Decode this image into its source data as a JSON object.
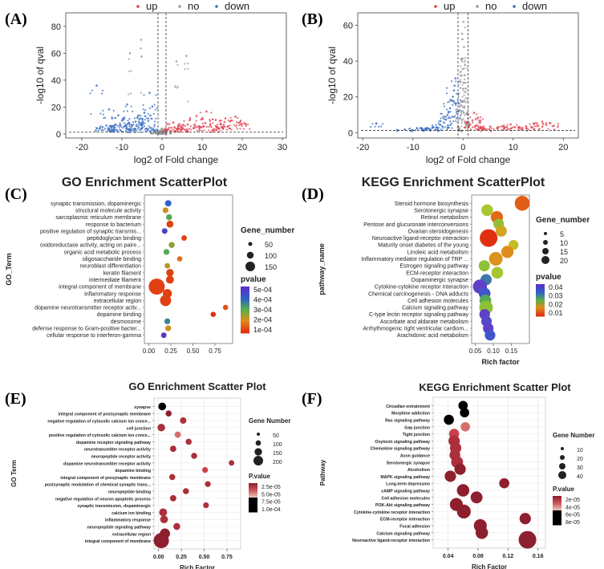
{
  "panel_labels": [
    "(A)",
    "(B)",
    "(C)",
    "(D)",
    "(E)",
    "(F)"
  ],
  "volcano_legend": [
    "up",
    "no",
    "down"
  ],
  "colors": {
    "up": "#e0404f",
    "no": "#9a9a9a",
    "down": "#3b6fc1"
  },
  "chart_data": [
    {
      "type": "scatter",
      "panel": "(A)",
      "title": "",
      "xlabel": "log2 of Fold change",
      "ylabel": "-log10 of qval",
      "xlim": [
        -24,
        31
      ],
      "ylim": [
        -3,
        90
      ],
      "xticks": [
        -20,
        -10,
        0,
        10,
        20,
        30
      ],
      "yticks": [
        0,
        20,
        40,
        60,
        80
      ],
      "threshold_x": [
        -1,
        1
      ],
      "threshold_y": 1.3,
      "legend": [
        "up",
        "no",
        "down"
      ],
      "series": [
        {
          "name": "down",
          "x": [
            -15.5,
            -14.8,
            -13.9,
            -12.7,
            -11.6,
            -10.4,
            -9.1,
            -8.2,
            -7.5,
            -6.6,
            -5.7,
            -4.9,
            -4.2,
            -3.4,
            -2.7,
            -2.1,
            -13.2,
            -10.9,
            -8.7,
            -6.1,
            -4.4,
            -3.1,
            -12.1,
            -7.9,
            -5.1,
            -16.3,
            -9.6,
            -2.4,
            -6.9,
            -11.2
          ],
          "y": [
            4.2,
            5.1,
            6.3,
            5.4,
            7.1,
            6.8,
            5.9,
            8.4,
            6.1,
            9.2,
            7.5,
            11.3,
            13.2,
            9.8,
            4.4,
            3.1,
            18.3,
            13.9,
            22.0,
            12.4,
            15.8,
            30.6,
            3.4,
            2.9,
            4.1,
            36.0,
            10.6,
            20.4,
            3.6,
            2.6
          ]
        },
        {
          "name": "no",
          "x": [
            -0.9,
            -0.6,
            -0.3,
            0.0,
            0.2,
            0.5,
            0.8,
            -0.4,
            0.3,
            -0.7,
            0.6,
            -0.1,
            0.1,
            -1.2,
            -8.0,
            -5.2,
            3.6,
            6.1,
            -1.4,
            0.9,
            -0.5,
            0.4,
            -2.5,
            2.1
          ],
          "y": [
            0.3,
            1.1,
            0.6,
            0.2,
            1.4,
            0.8,
            0.4,
            2.6,
            3.1,
            0.1,
            1.9,
            4.0,
            0.9,
            0.5,
            60.0,
            70.0,
            54.0,
            58.0,
            1.5,
            0.2,
            0.7,
            1.2,
            0.4,
            0.6
          ]
        },
        {
          "name": "up",
          "x": [
            1.5,
            2.3,
            3.1,
            4.0,
            5.2,
            6.4,
            7.9,
            9.3,
            10.8,
            12.0,
            13.4,
            14.6,
            15.8,
            17.0,
            18.3,
            19.5,
            11.1,
            8.6,
            13.9,
            16.4,
            2.8,
            6.9,
            20.8,
            12.7,
            4.7
          ],
          "y": [
            3.4,
            4.6,
            5.1,
            6.2,
            3.9,
            7.1,
            4.3,
            5.8,
            8.2,
            6.6,
            10.4,
            7.3,
            11.6,
            9.4,
            12.9,
            9.1,
            16.7,
            13.4,
            4.8,
            5.7,
            8.5,
            10.2,
            7.6,
            3.2,
            2.6
          ]
        }
      ]
    },
    {
      "type": "scatter",
      "panel": "(B)",
      "title": "",
      "xlabel": "log2 of Fold change",
      "ylabel": "-log10 of qval",
      "xlim": [
        -21,
        23
      ],
      "ylim": [
        -3,
        67
      ],
      "xticks": [
        -20,
        -10,
        0,
        10,
        20
      ],
      "yticks": [
        0,
        20,
        40,
        60
      ],
      "threshold_x": [
        -1,
        1
      ],
      "threshold_y": 1.3,
      "legend": [
        "up",
        "no",
        "down"
      ],
      "series": [
        {
          "name": "down",
          "x": [
            -17.3,
            -11.6,
            -9.2,
            -7.4,
            -5.9,
            -4.6,
            -3.8,
            -3.1,
            -2.6,
            -2.2,
            -1.8,
            -1.5,
            -3.4,
            -2.9,
            -4.1,
            -2.0,
            -1.7,
            -6.6,
            -8.3,
            -1.4
          ],
          "y": [
            5.2,
            1.8,
            2.6,
            2.2,
            3.1,
            4.4,
            5.6,
            9.8,
            13.7,
            17.9,
            23.6,
            30.4,
            7.3,
            11.2,
            3.5,
            20.1,
            26.3,
            1.9,
            2.7,
            16.4
          ]
        },
        {
          "name": "no",
          "x": [
            -0.9,
            -0.6,
            -0.3,
            0.0,
            0.3,
            0.6,
            0.9,
            -0.4,
            0.4,
            -0.7,
            0.7,
            -0.2,
            0.2,
            -0.5,
            0.5,
            -0.8,
            0.1,
            -0.1,
            0.8,
            -0.3
          ],
          "y": [
            3.2,
            8.1,
            15.4,
            24.6,
            32.1,
            19.3,
            6.4,
            41.2,
            37.8,
            12.6,
            10.5,
            55.3,
            47.9,
            28.4,
            22.7,
            2.1,
            62.0,
            35.6,
            4.8,
            1.2
          ]
        },
        {
          "name": "up",
          "x": [
            1.4,
            1.9,
            2.6,
            3.4,
            4.3,
            5.4,
            6.8,
            8.1,
            9.5,
            11.2,
            12.6,
            14.1,
            15.8,
            17.4,
            2.2,
            3.0,
            10.3,
            16.6
          ],
          "y": [
            4.6,
            6.9,
            3.8,
            2.9,
            2.2,
            3.4,
            2.7,
            3.9,
            4.6,
            2.8,
            3.6,
            5.1,
            6.2,
            5.3,
            11.1,
            8.4,
            3.1,
            4.4
          ]
        }
      ]
    },
    {
      "type": "scatter",
      "panel": "(C)",
      "title": "GO Enrichment ScatterPlot",
      "xlabel": "",
      "ylabel": "GO_Term",
      "xlim": [
        -0.05,
        0.95
      ],
      "xticks": [
        0.0,
        0.25,
        0.5,
        0.75
      ],
      "tick_labels": [
        "0.00",
        "0.25",
        "0.50",
        "0.75"
      ],
      "size_legend_title": "Gene_number",
      "size_legend": [
        50,
        100,
        150
      ],
      "color_legend_title": "pvalue",
      "color_legend": [
        "5e-04",
        "4e-04",
        "3e-04",
        "2e-04",
        "1e-04"
      ],
      "categories": [
        "synaptic transmission, dopaminergic",
        "structural molecule activity",
        "sarcoplasmic reticulum membrane",
        "response to bacterium",
        "positive regulation of synaptic transmis...",
        "peptidoglycan binding",
        "oxidoreductase activity, acting on paire...",
        "organic acid metabolic process",
        "oligosaccharide binding",
        "neuroblast differentiation",
        "keratin filament",
        "intermediate filament",
        "integral component of membrane",
        "inflammatory response",
        "extracellular region",
        "dopamine neurotransmitter receptor activ...",
        "dopamine binding",
        "desmosome",
        "defense response to Gram-positive bacter...",
        "cellular response to interferon-gamma"
      ],
      "x": [
        0.22,
        0.19,
        0.23,
        0.24,
        0.18,
        0.4,
        0.26,
        0.2,
        0.35,
        0.21,
        0.24,
        0.24,
        0.09,
        0.21,
        0.19,
        0.87,
        0.73,
        0.21,
        0.22,
        0.17
      ],
      "size": [
        12,
        9,
        10,
        16,
        8,
        7,
        10,
        9,
        6,
        7,
        20,
        24,
        150,
        35,
        60,
        6,
        6,
        9,
        9,
        7
      ],
      "pvalue": [
        0.0004,
        0.0002,
        0.0003,
        0.0001,
        0.00045,
        0.0001,
        0.00025,
        0.0003,
        0.00015,
        0.00022,
        0.0001,
        0.0001,
        0.0001,
        0.0001,
        0.0001,
        0.00012,
        8e-05,
        0.00035,
        0.0002,
        0.0005
      ]
    },
    {
      "type": "scatter",
      "panel": "(D)",
      "title": "KEGG Enrichment ScatterPlot",
      "xlabel": "Rich factor",
      "ylabel": "pathway_name",
      "xlim": [
        0.04,
        0.2
      ],
      "xticks": [
        0.05,
        0.1,
        0.15
      ],
      "tick_labels": [
        "0.05",
        "0.10",
        "0.15"
      ],
      "size_legend_title": "Gene_number",
      "size_legend": [
        5,
        10,
        15,
        20
      ],
      "color_legend_title": "pvalue",
      "color_legend": [
        "0.04",
        "0.03",
        "0.02",
        "0.01"
      ],
      "categories": [
        "Steroid hormone biosynthesis",
        "Serotonergic synapse",
        "Retinol metabolism",
        "Pentose and glucuronate interconversions",
        "Ovarian steroidogenesis",
        "Neuroactive ligand-receptor interaction",
        "Maturity onset diabetes of the young",
        "Linoleic acid metabolism",
        "Inflammatory mediator regulation of TRP ...",
        "Estrogen signaling pathway",
        "ECM-receptor interaction",
        "Dopaminergic synapse",
        "Cytokine-cytokine receptor interaction",
        "Chemical carcinogenesis - DNA adducts",
        "Cell adhesion molecules",
        "Calcium signaling pathway",
        "C-type lectin receptor signaling pathway",
        "Ascorbate and aldarate metabolism",
        "Arrhythmogenic right ventricular cardiom...",
        "Arachidonic acid metabolism"
      ],
      "x": [
        0.18,
        0.083,
        0.11,
        0.115,
        0.122,
        0.087,
        0.156,
        0.139,
        0.107,
        0.075,
        0.111,
        0.08,
        0.063,
        0.076,
        0.078,
        0.08,
        0.076,
        0.081,
        0.086,
        0.091
      ],
      "size": [
        15,
        8,
        9,
        6,
        7,
        23,
        5,
        9,
        12,
        7,
        8,
        7,
        13,
        8,
        8,
        12,
        6,
        6,
        6,
        6
      ],
      "pvalue": [
        0.005,
        0.018,
        0.006,
        0.02,
        0.012,
        0.001,
        0.015,
        0.009,
        0.01,
        0.02,
        0.018,
        0.03,
        0.04,
        0.035,
        0.025,
        0.02,
        0.04,
        0.038,
        0.04,
        0.035
      ]
    },
    {
      "type": "scatter",
      "panel": "(E)",
      "title": "GO Enrichment Scatter Plot",
      "xlabel": "Rich Factor",
      "ylabel": "GO Term",
      "xlim": [
        -0.05,
        0.9
      ],
      "xticks": [
        0.0,
        0.25,
        0.5,
        0.75
      ],
      "tick_labels": [
        "0.00",
        "0.25",
        "0.50",
        "0.75"
      ],
      "size_legend_title": "Gene Number",
      "size_legend": [
        50,
        100,
        150,
        200
      ],
      "color_legend_title": "P.value",
      "color_legend": [
        "2.5e-05",
        "5.0e-05",
        "7.5e-05",
        "1.0e-04"
      ],
      "categories": [
        "synapse",
        "integral component of postsynaptic membrane",
        "negative regulation of cytosolic calcium ion conce...",
        "cell junction",
        "positive regulation of cytosolic calcium ion conce...",
        "dopamine receptor signaling pathway",
        "neurotransmitter receptor activity",
        "neuropeptide receptor activity",
        "dopamine neurotransmitter receptor activity",
        "dopamine binding",
        "integral component of presynaptic membrane",
        "postsynaptic modulation of chemical synaptic trans...",
        "neuropeptide binding",
        "negative regulation of neuron apoptotic process",
        "synaptic transmission, dopaminergic",
        "calcium ion binding",
        "inflammatory response",
        "neuropeptide signaling pathway",
        "extracellular region",
        "integral component of membrane"
      ],
      "x": [
        0.04,
        0.11,
        0.27,
        0.03,
        0.21,
        0.33,
        0.16,
        0.39,
        0.8,
        0.51,
        0.15,
        0.54,
        0.3,
        0.16,
        0.52,
        0.05,
        0.06,
        0.2,
        0.07,
        0.03
      ],
      "size": [
        30,
        12,
        15,
        28,
        14,
        12,
        14,
        12,
        8,
        10,
        12,
        10,
        12,
        14,
        10,
        32,
        30,
        20,
        70,
        210
      ],
      "pvalue": [
        0.0001,
        2e-05,
        3e-05,
        3e-05,
        5e-05,
        3e-05,
        3e-05,
        3e-05,
        3e-05,
        4e-05,
        3e-05,
        3e-05,
        3e-05,
        3e-05,
        3e-05,
        3e-05,
        3e-05,
        3e-05,
        2e-05,
        2e-05
      ]
    },
    {
      "type": "scatter",
      "panel": "(F)",
      "title": "KEGG Enrichment Scatter Plot",
      "xlabel": "Rich Factor",
      "ylabel": "Pathway",
      "xlim": [
        0.02,
        0.17
      ],
      "xticks": [
        0.04,
        0.08,
        0.12,
        0.16
      ],
      "tick_labels": [
        "0.04",
        "0.08",
        "0.12",
        "0.16"
      ],
      "size_legend_title": "Gene Number",
      "size_legend": [
        10,
        20,
        30,
        40
      ],
      "color_legend_title": "P.value",
      "color_legend": [
        "2e-05",
        "4e-05",
        "6e-05",
        "8e-05"
      ],
      "categories": [
        "Circadian entrainment",
        "Morphine addiction",
        "Ras signaling pathway",
        "Gap junction",
        "Tight junction",
        "Oxytocin signaling pathway",
        "Chemokine signaling pathway",
        "Axon guidance",
        "Serotonergic synapse",
        "Alcoholism",
        "MAPK signaling pathway",
        "Long-term depression",
        "cAMP signaling pathway",
        "Cell adhesion molecules",
        "PI3K-Akt signaling pathway",
        "Cytokine-cytokine receptor interaction",
        "ECM-receptor interaction",
        "Focal adhesion",
        "Calcium signaling pathway",
        "Neuroactive ligand-receptor interaction"
      ],
      "x": [
        0.06,
        0.062,
        0.041,
        0.063,
        0.048,
        0.048,
        0.05,
        0.049,
        0.052,
        0.056,
        0.043,
        0.115,
        0.06,
        0.078,
        0.051,
        0.061,
        0.143,
        0.083,
        0.085,
        0.146
      ],
      "size": [
        8,
        8,
        10,
        8,
        10,
        14,
        14,
        12,
        16,
        14,
        14,
        10,
        18,
        16,
        20,
        24,
        14,
        20,
        18,
        44
      ],
      "pvalue": [
        9e-05,
        9e-05,
        0.0001,
        5e-05,
        4e-05,
        3e-05,
        3e-05,
        3e-05,
        3e-05,
        2e-05,
        2e-05,
        2e-05,
        2e-05,
        2e-05,
        2e-05,
        2e-05,
        2e-05,
        2e-05,
        2e-05,
        2e-05
      ]
    }
  ]
}
